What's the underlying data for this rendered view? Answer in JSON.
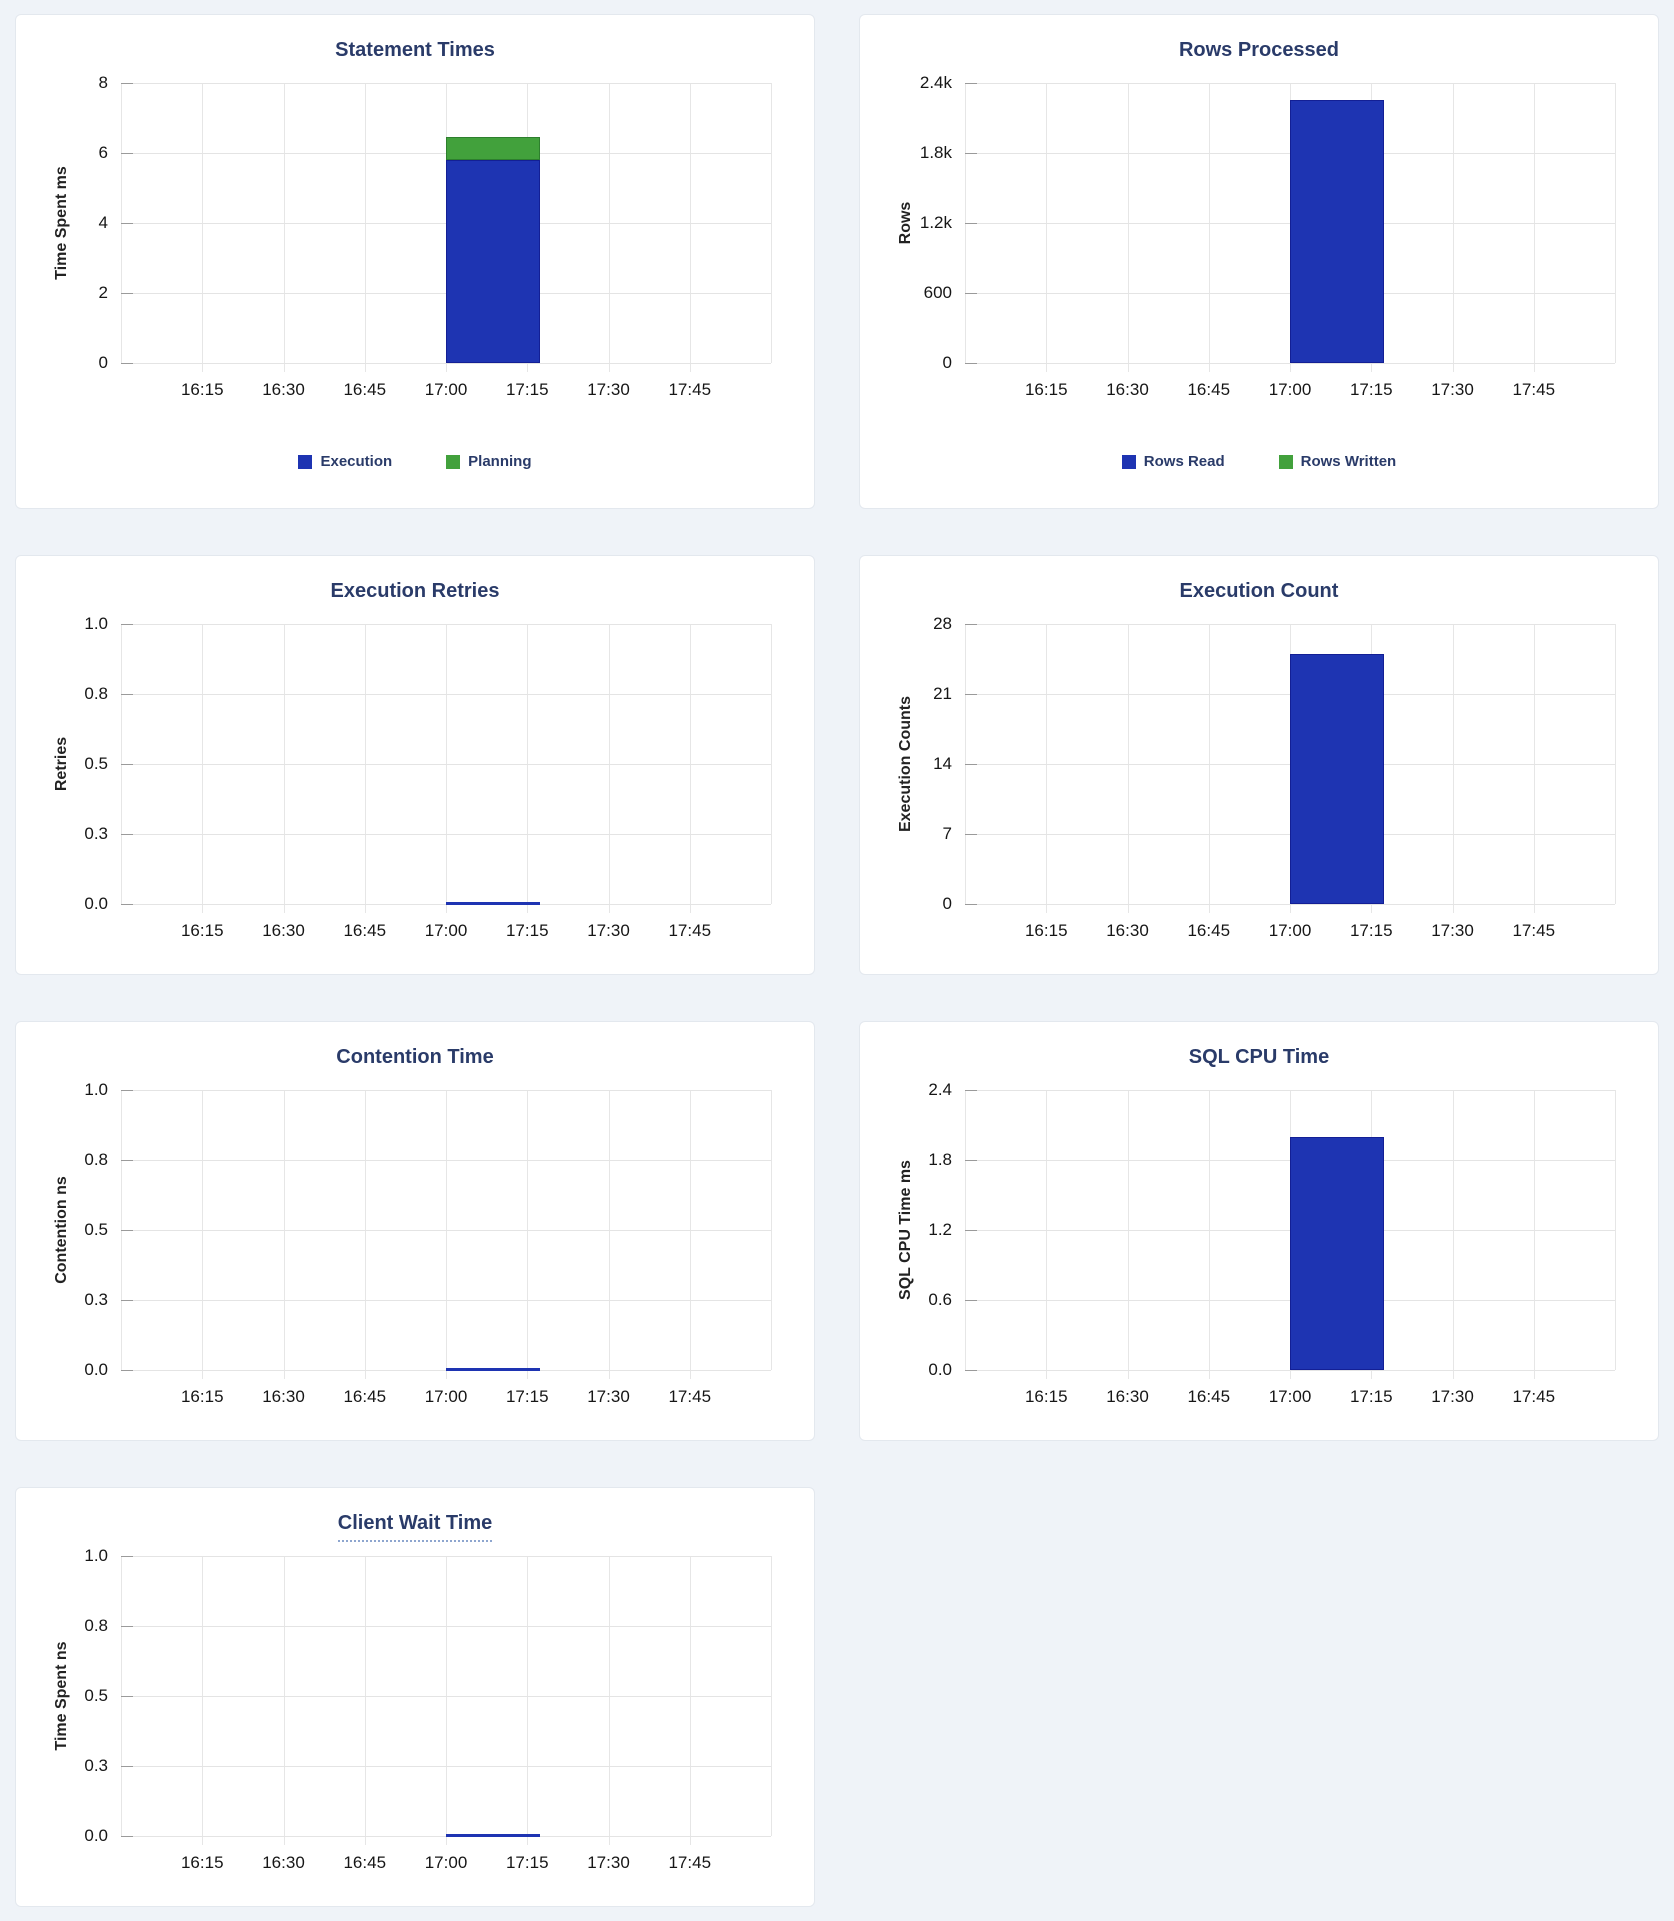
{
  "page": {
    "background_color": "#eff3f8",
    "card_background": "#ffffff",
    "card_border_color": "#e3e8ee",
    "title_color": "#2a3b69",
    "gridline_color": "#e4e4e4",
    "tick_label_color": "#161616"
  },
  "chart_data": [
    {
      "type": "bar",
      "title": "Statement Times",
      "title_tooltip_underline": false,
      "ylabel": "Time Spent ms",
      "ymax": 8,
      "y_tick_labels": [
        "8",
        "6",
        "4",
        "2",
        "0"
      ],
      "x_tick_labels": [
        "16:15",
        "16:30",
        "16:45",
        "17:00",
        "17:15",
        "17:30",
        "17:45"
      ],
      "x_axis_range": [
        "16:00",
        "18:00"
      ],
      "bar_window": {
        "start": "17:00",
        "end": "17:17"
      },
      "grid": true,
      "legend_visible": true,
      "legend_position": "bottom",
      "series": [
        {
          "name": "Execution",
          "value": 5.8,
          "color": "#1e34b2",
          "border_color": "#131f95"
        },
        {
          "name": "Planning",
          "value": 0.65,
          "color": "#42a13c",
          "border_color": "#2d7f2d"
        }
      ]
    },
    {
      "type": "bar",
      "title": "Rows Processed",
      "title_tooltip_underline": false,
      "ylabel": "Rows",
      "ymax": 2400,
      "y_tick_labels": [
        "2.4k",
        "1.8k",
        "1.2k",
        "600",
        "0"
      ],
      "x_tick_labels": [
        "16:15",
        "16:30",
        "16:45",
        "17:00",
        "17:15",
        "17:30",
        "17:45"
      ],
      "x_axis_range": [
        "16:00",
        "18:00"
      ],
      "bar_window": {
        "start": "17:00",
        "end": "17:17"
      },
      "grid": true,
      "legend_visible": true,
      "legend_position": "bottom",
      "series": [
        {
          "name": "Rows Read",
          "value": 2250,
          "color": "#1e34b2",
          "border_color": "#131f95"
        },
        {
          "name": "Rows Written",
          "value": 0,
          "color": "#42a13c",
          "border_color": "#2d7f2d"
        }
      ]
    },
    {
      "type": "bar",
      "title": "Execution Retries",
      "title_tooltip_underline": false,
      "ylabel": "Retries",
      "ymax": 1.0,
      "y_tick_labels": [
        "1.0",
        "0.8",
        "0.5",
        "0.3",
        "0.0"
      ],
      "x_tick_labels": [
        "16:15",
        "16:30",
        "16:45",
        "17:00",
        "17:15",
        "17:30",
        "17:45"
      ],
      "x_axis_range": [
        "16:00",
        "18:00"
      ],
      "bar_window": {
        "start": "17:00",
        "end": "17:17"
      },
      "grid": true,
      "legend_visible": false,
      "series": [
        {
          "name": "Retries",
          "value": 0,
          "color": "#1e34b2",
          "border_color": "#131f95"
        }
      ]
    },
    {
      "type": "bar",
      "title": "Execution Count",
      "title_tooltip_underline": false,
      "ylabel": "Execution Counts",
      "ymax": 28,
      "y_tick_labels": [
        "28",
        "21",
        "14",
        "7",
        "0"
      ],
      "x_tick_labels": [
        "16:15",
        "16:30",
        "16:45",
        "17:00",
        "17:15",
        "17:30",
        "17:45"
      ],
      "x_axis_range": [
        "16:00",
        "18:00"
      ],
      "bar_window": {
        "start": "17:00",
        "end": "17:17"
      },
      "grid": true,
      "legend_visible": false,
      "series": [
        {
          "name": "Execution Count",
          "value": 25,
          "color": "#1e34b2",
          "border_color": "#131f95"
        }
      ]
    },
    {
      "type": "bar",
      "title": "Contention Time",
      "title_tooltip_underline": false,
      "ylabel": "Contention ns",
      "ymax": 1.0,
      "y_tick_labels": [
        "1.0",
        "0.8",
        "0.5",
        "0.3",
        "0.0"
      ],
      "x_tick_labels": [
        "16:15",
        "16:30",
        "16:45",
        "17:00",
        "17:15",
        "17:30",
        "17:45"
      ],
      "x_axis_range": [
        "16:00",
        "18:00"
      ],
      "bar_window": {
        "start": "17:00",
        "end": "17:17"
      },
      "grid": true,
      "legend_visible": false,
      "series": [
        {
          "name": "Contention",
          "value": 0,
          "color": "#1e34b2",
          "border_color": "#131f95"
        }
      ]
    },
    {
      "type": "bar",
      "title": "SQL CPU Time",
      "title_tooltip_underline": false,
      "ylabel": "SQL CPU Time ms",
      "ymax": 2.4,
      "y_tick_labels": [
        "2.4",
        "1.8",
        "1.2",
        "0.6",
        "0.0"
      ],
      "x_tick_labels": [
        "16:15",
        "16:30",
        "16:45",
        "17:00",
        "17:15",
        "17:30",
        "17:45"
      ],
      "x_axis_range": [
        "16:00",
        "18:00"
      ],
      "bar_window": {
        "start": "17:00",
        "end": "17:17"
      },
      "grid": true,
      "legend_visible": false,
      "series": [
        {
          "name": "SQL CPU Time",
          "value": 2.0,
          "color": "#1e34b2",
          "border_color": "#131f95"
        }
      ]
    },
    {
      "type": "bar",
      "title": "Client Wait Time",
      "title_tooltip_underline": true,
      "ylabel": "Time Spent ns",
      "ymax": 1.0,
      "y_tick_labels": [
        "1.0",
        "0.8",
        "0.5",
        "0.3",
        "0.0"
      ],
      "x_tick_labels": [
        "16:15",
        "16:30",
        "16:45",
        "17:00",
        "17:15",
        "17:30",
        "17:45"
      ],
      "x_axis_range": [
        "16:00",
        "18:00"
      ],
      "bar_window": {
        "start": "17:00",
        "end": "17:17"
      },
      "grid": true,
      "legend_visible": false,
      "series": [
        {
          "name": "Client Wait",
          "value": 0,
          "color": "#1e34b2",
          "border_color": "#131f95"
        }
      ]
    }
  ]
}
